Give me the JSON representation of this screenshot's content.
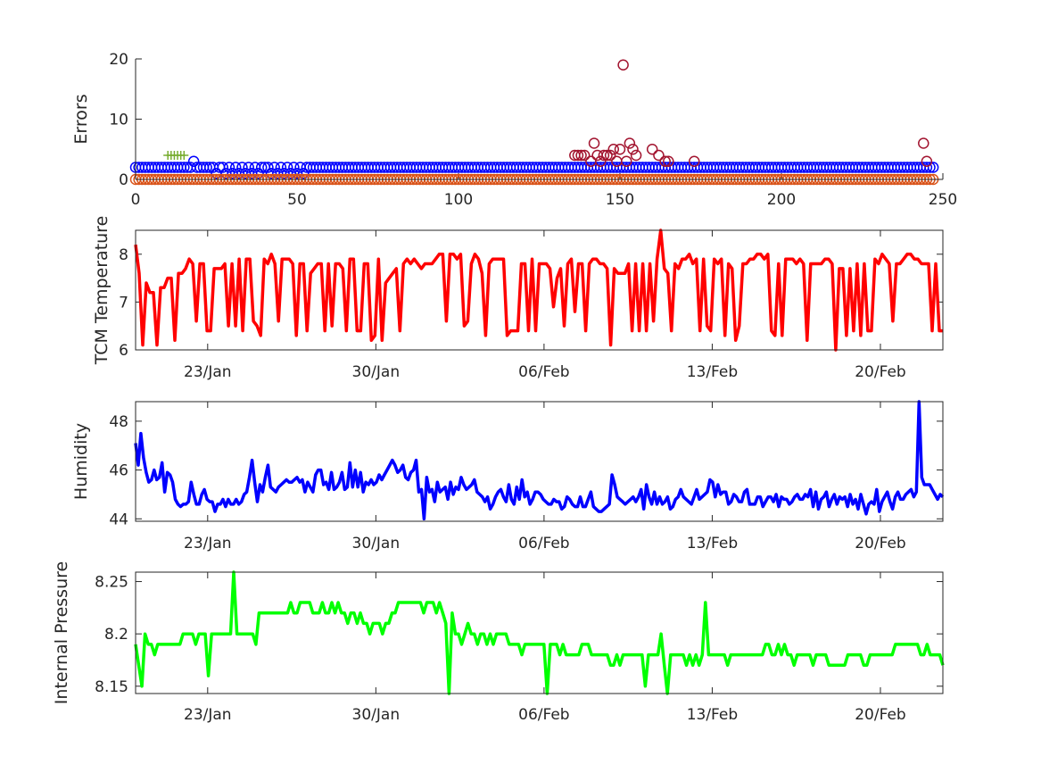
{
  "chart_data": [
    {
      "type": "scatter",
      "ylabel": "Errors",
      "xlim": [
        0,
        250
      ],
      "ylim": [
        0,
        20
      ],
      "xticks": [
        "0",
        "50",
        "100",
        "150",
        "200",
        "250"
      ],
      "yticks": [
        "0",
        "10",
        "20"
      ],
      "series": [
        {
          "marker": "o",
          "color": "#0000ff",
          "x_range": [
            0,
            247
          ],
          "baseline": 2,
          "exceptions": [
            [
              18,
              3
            ],
            [
              40,
              2
            ],
            [
              25,
              1
            ],
            [
              28,
              1
            ],
            [
              30,
              1
            ],
            [
              32,
              1
            ],
            [
              34,
              1
            ],
            [
              36,
              1
            ],
            [
              38,
              1
            ],
            [
              42,
              1
            ],
            [
              44,
              1
            ],
            [
              46,
              1
            ],
            [
              48,
              1
            ],
            [
              50,
              1
            ],
            [
              52,
              1
            ]
          ]
        },
        {
          "marker": "o",
          "color": "#a2142f",
          "points": [
            [
              136,
              4
            ],
            [
              137,
              4
            ],
            [
              138,
              4
            ],
            [
              139,
              4
            ],
            [
              141,
              3
            ],
            [
              142,
              6
            ],
            [
              143,
              4
            ],
            [
              144,
              3
            ],
            [
              145,
              4
            ],
            [
              146,
              4
            ],
            [
              147,
              4
            ],
            [
              148,
              5
            ],
            [
              149,
              3
            ],
            [
              150,
              5
            ],
            [
              151,
              19
            ],
            [
              152,
              3
            ],
            [
              153,
              6
            ],
            [
              154,
              5
            ],
            [
              155,
              4
            ],
            [
              160,
              5
            ],
            [
              162,
              4
            ],
            [
              164,
              3
            ],
            [
              165,
              3
            ],
            [
              173,
              3
            ],
            [
              244,
              6
            ],
            [
              245,
              3
            ]
          ]
        },
        {
          "marker": "o",
          "color": "#d95319",
          "x_range": [
            0,
            247
          ],
          "baseline": 0
        },
        {
          "marker": "+",
          "color": "#77ac30",
          "points": [
            [
              10,
              4
            ],
            [
              11,
              4
            ],
            [
              12,
              4
            ],
            [
              13,
              4
            ],
            [
              14,
              4
            ],
            [
              15,
              4
            ]
          ]
        }
      ]
    },
    {
      "type": "line",
      "ylabel": "TCM Temperature",
      "color": "#ff0000",
      "xticks": [
        "23/Jan",
        "30/Jan",
        "06/Feb",
        "13/Feb",
        "20/Feb"
      ],
      "yticks": [
        "6",
        "7",
        "8"
      ],
      "ylim": [
        6,
        8.5
      ],
      "x_start": "20/Jan",
      "x_end": "22/Feb",
      "values": [
        8.2,
        7.6,
        6.1,
        7.4,
        7.2,
        7.2,
        6.1,
        7.3,
        7.3,
        7.5,
        7.5,
        6.2,
        7.6,
        7.6,
        7.7,
        7.9,
        7.8,
        6.6,
        7.8,
        7.8,
        6.4,
        6.4,
        7.7,
        7.7,
        7.7,
        7.8,
        6.5,
        7.8,
        6.5,
        7.9,
        6.4,
        7.9,
        7.9,
        6.6,
        6.5,
        6.3,
        7.9,
        7.8,
        8.0,
        7.8,
        6.6,
        7.9,
        7.9,
        7.9,
        7.8,
        6.3,
        7.8,
        7.8,
        6.4,
        7.6,
        7.7,
        7.8,
        7.8,
        6.4,
        7.8,
        6.5,
        7.8,
        7.8,
        7.7,
        6.4,
        7.9,
        7.9,
        6.4,
        6.4,
        7.8,
        7.8,
        6.2,
        6.3,
        7.9,
        6.2,
        7.4,
        7.5,
        7.6,
        7.7,
        6.4,
        7.8,
        7.9,
        7.8,
        7.9,
        7.8,
        7.7,
        7.8,
        7.8,
        7.8,
        7.9,
        8.0,
        8.0,
        6.6,
        8.0,
        8.0,
        7.9,
        8.0,
        6.5,
        6.6,
        7.8,
        8.0,
        7.9,
        7.6,
        6.3,
        7.8,
        7.9,
        7.9,
        7.9,
        7.9,
        6.3,
        6.4,
        6.4,
        6.4,
        7.8,
        7.8,
        6.4,
        7.9,
        6.4,
        7.8,
        7.8,
        7.8,
        7.7,
        6.9,
        7.5,
        7.7,
        6.5,
        7.8,
        7.9,
        6.8,
        7.8,
        7.8,
        6.4,
        7.8,
        7.9,
        7.9,
        7.8,
        7.8,
        7.7,
        6.1,
        7.7,
        7.6,
        7.6,
        7.6,
        7.8,
        6.4,
        7.8,
        6.4,
        7.8,
        6.4,
        7.8,
        6.6,
        7.9,
        8.5,
        7.7,
        7.6,
        6.4,
        7.8,
        7.7,
        7.9,
        7.9,
        8.0,
        7.8,
        7.9,
        6.4,
        7.9,
        6.5,
        6.4,
        7.9,
        7.8,
        7.9,
        6.3,
        7.8,
        7.7,
        6.2,
        6.5,
        7.8,
        7.8,
        7.9,
        7.9,
        8.0,
        8.0,
        7.9,
        8.0,
        6.4,
        6.3,
        7.8,
        6.3,
        7.9,
        7.9,
        7.9,
        7.8,
        7.9,
        7.8,
        6.2,
        7.8,
        7.8,
        7.8,
        7.8,
        7.9,
        7.9,
        7.8,
        6.0,
        7.7,
        7.7,
        6.3,
        7.7,
        6.4,
        7.8,
        6.3,
        7.8,
        6.4,
        6.4,
        7.9,
        7.8,
        8.0,
        7.9,
        7.8,
        6.6,
        7.8,
        7.8,
        7.9,
        8.0,
        8.0,
        7.9,
        7.9,
        7.8,
        7.8,
        7.8,
        6.4,
        7.8,
        6.4,
        6.4
      ]
    },
    {
      "type": "line",
      "ylabel": "Humidity",
      "color": "#0000ff",
      "xticks": [
        "23/Jan",
        "30/Jan",
        "06/Feb",
        "13/Feb",
        "20/Feb"
      ],
      "yticks": [
        "44",
        "46",
        "48"
      ],
      "ylim": [
        43.9,
        48.8
      ],
      "x_start": "20/Jan",
      "x_end": "22/Feb",
      "values": [
        47.1,
        46.2,
        47.5,
        46.5,
        45.9,
        45.5,
        45.6,
        46.0,
        45.6,
        45.7,
        46.3,
        45.1,
        45.9,
        45.8,
        45.5,
        44.8,
        44.6,
        44.5,
        44.6,
        44.6,
        44.7,
        45.5,
        45.0,
        44.6,
        44.6,
        45.0,
        45.2,
        44.8,
        44.7,
        44.7,
        44.3,
        44.6,
        44.6,
        44.8,
        44.5,
        44.8,
        44.6,
        44.6,
        44.8,
        44.6,
        44.7,
        45.0,
        45.1,
        45.7,
        46.4,
        45.5,
        44.7,
        45.4,
        45.1,
        45.7,
        46.2,
        45.3,
        45.2,
        45.1,
        45.3,
        45.4,
        45.5,
        45.6,
        45.5,
        45.5,
        45.6,
        45.7,
        45.5,
        45.6,
        45.1,
        45.5,
        45.3,
        45.1,
        45.8,
        46.0,
        46.0,
        45.4,
        45.5,
        45.2,
        45.9,
        45.2,
        45.3,
        45.5,
        45.9,
        45.2,
        45.3,
        46.3,
        45.3,
        46.0,
        45.3,
        45.9,
        45.1,
        45.5,
        45.4,
        45.6,
        45.4,
        45.5,
        45.8,
        45.6,
        45.8,
        46.0,
        46.2,
        46.4,
        46.2,
        45.9,
        46.0,
        46.2,
        45.7,
        45.6,
        45.9,
        46.0,
        46.4,
        45.1,
        45.2,
        44.0,
        45.7,
        45.1,
        45.2,
        44.7,
        45.5,
        45.1,
        45.2,
        45.3,
        44.8,
        45.5,
        45.0,
        45.3,
        45.2,
        45.7,
        45.4,
        45.2,
        45.3,
        45.4,
        45.6,
        45.1,
        45.0,
        44.9,
        44.7,
        44.9,
        44.4,
        44.6,
        44.9,
        45.1,
        45.2,
        44.9,
        44.7,
        45.4,
        44.8,
        44.6,
        45.3,
        44.8,
        45.6,
        44.9,
        45.1,
        44.6,
        44.8,
        45.1,
        45.1,
        45.0,
        44.8,
        44.7,
        44.6,
        44.6,
        44.8,
        44.7,
        44.7,
        44.4,
        44.5,
        44.9,
        44.8,
        44.6,
        44.5,
        44.5,
        44.9,
        44.5,
        44.5,
        44.8,
        45.1,
        44.5,
        44.4,
        44.3,
        44.3,
        44.4,
        44.5,
        44.6,
        45.8,
        45.4,
        44.9,
        44.8,
        44.7,
        44.6,
        44.7,
        44.8,
        44.9,
        44.7,
        44.9,
        45.2,
        44.4,
        45.4,
        44.9,
        44.6,
        45.1,
        44.6,
        44.9,
        44.6,
        44.7,
        44.9,
        44.4,
        44.5,
        44.8,
        44.9,
        45.2,
        44.9,
        44.8,
        44.7,
        44.6,
        44.9,
        45.2,
        44.8,
        44.9,
        45.0,
        45.1,
        45.6,
        45.5,
        44.9,
        45.4,
        45.0,
        45.1,
        45.1,
        44.6,
        44.7,
        45.0,
        44.9,
        44.7,
        44.7,
        45.1,
        45.2,
        44.6,
        44.6,
        44.6,
        44.9,
        44.9,
        44.5,
        44.7,
        44.9,
        44.9,
        44.7,
        45.0,
        44.5,
        44.9,
        44.8,
        44.8,
        44.6,
        44.7,
        44.9,
        45.0,
        44.8,
        44.8,
        45.0,
        44.9,
        45.2,
        44.5,
        45.1,
        44.4,
        44.8,
        44.9,
        45.1,
        44.5,
        44.8,
        45.0,
        44.6,
        44.9,
        44.8,
        44.9,
        44.5,
        45.0,
        44.6,
        44.8,
        44.4,
        45.0,
        44.6,
        44.2,
        44.6,
        44.7,
        44.6,
        45.2,
        44.3,
        44.7,
        44.9,
        45.1,
        44.7,
        44.4,
        44.9,
        45.1,
        44.8,
        44.8,
        45.0,
        45.1,
        45.2,
        44.9,
        45.1,
        48.8,
        45.7,
        45.4,
        45.4,
        45.4,
        45.2,
        45.0,
        44.8,
        45.0,
        44.9
      ]
    },
    {
      "type": "line",
      "ylabel": "Internal Pressure",
      "color": "#00ff00",
      "xticks": [
        "23/Jan",
        "30/Jan",
        "06/Feb",
        "13/Feb",
        "20/Feb"
      ],
      "yticks": [
        "8.15",
        "8.2",
        "8.25"
      ],
      "ylim": [
        8.143,
        8.259
      ],
      "x_start": "20/Jan",
      "x_end": "22/Feb",
      "values": [
        8.19,
        8.17,
        8.15,
        8.2,
        8.19,
        8.19,
        8.18,
        8.19,
        8.19,
        8.19,
        8.19,
        8.19,
        8.19,
        8.19,
        8.19,
        8.2,
        8.2,
        8.2,
        8.2,
        8.19,
        8.2,
        8.2,
        8.2,
        8.16,
        8.2,
        8.2,
        8.2,
        8.2,
        8.2,
        8.2,
        8.2,
        8.26,
        8.2,
        8.2,
        8.2,
        8.2,
        8.2,
        8.2,
        8.19,
        8.22,
        8.22,
        8.22,
        8.22,
        8.22,
        8.22,
        8.22,
        8.22,
        8.22,
        8.22,
        8.23,
        8.22,
        8.22,
        8.23,
        8.23,
        8.23,
        8.23,
        8.22,
        8.22,
        8.22,
        8.23,
        8.22,
        8.22,
        8.23,
        8.22,
        8.23,
        8.22,
        8.22,
        8.21,
        8.22,
        8.22,
        8.21,
        8.22,
        8.21,
        8.21,
        8.2,
        8.21,
        8.21,
        8.21,
        8.2,
        8.21,
        8.21,
        8.22,
        8.22,
        8.23,
        8.23,
        8.23,
        8.23,
        8.23,
        8.23,
        8.23,
        8.23,
        8.22,
        8.23,
        8.23,
        8.23,
        8.22,
        8.23,
        8.22,
        8.21,
        8.14,
        8.22,
        8.2,
        8.2,
        8.19,
        8.2,
        8.21,
        8.2,
        8.2,
        8.19,
        8.2,
        8.2,
        8.19,
        8.2,
        8.19,
        8.2,
        8.2,
        8.2,
        8.2,
        8.19,
        8.19,
        8.19,
        8.19,
        8.18,
        8.19,
        8.19,
        8.19,
        8.19,
        8.19,
        8.19,
        8.19,
        8.14,
        8.19,
        8.19,
        8.19,
        8.18,
        8.19,
        8.18,
        8.18,
        8.18,
        8.18,
        8.18,
        8.19,
        8.19,
        8.19,
        8.18,
        8.18,
        8.18,
        8.18,
        8.18,
        8.18,
        8.17,
        8.17,
        8.18,
        8.17,
        8.18,
        8.18,
        8.18,
        8.18,
        8.18,
        8.18,
        8.18,
        8.15,
        8.18,
        8.18,
        8.18,
        8.18,
        8.2,
        8.17,
        8.14,
        8.18,
        8.18,
        8.18,
        8.18,
        8.18,
        8.17,
        8.18,
        8.17,
        8.18,
        8.17,
        8.18,
        8.23,
        8.18,
        8.18,
        8.18,
        8.18,
        8.18,
        8.18,
        8.17,
        8.18,
        8.18,
        8.18,
        8.18,
        8.18,
        8.18,
        8.18,
        8.18,
        8.18,
        8.18,
        8.18,
        8.19,
        8.19,
        8.18,
        8.18,
        8.19,
        8.18,
        8.19,
        8.18,
        8.18,
        8.17,
        8.18,
        8.18,
        8.18,
        8.18,
        8.18,
        8.17,
        8.18,
        8.18,
        8.18,
        8.18,
        8.17,
        8.17,
        8.17,
        8.17,
        8.17,
        8.17,
        8.18,
        8.18,
        8.18,
        8.18,
        8.18,
        8.17,
        8.17,
        8.18,
        8.18,
        8.18,
        8.18,
        8.18,
        8.18,
        8.18,
        8.18,
        8.19,
        8.19,
        8.19,
        8.19,
        8.19,
        8.19,
        8.19,
        8.19,
        8.18,
        8.18,
        8.19,
        8.18,
        8.18,
        8.18,
        8.18,
        8.17
      ]
    }
  ]
}
